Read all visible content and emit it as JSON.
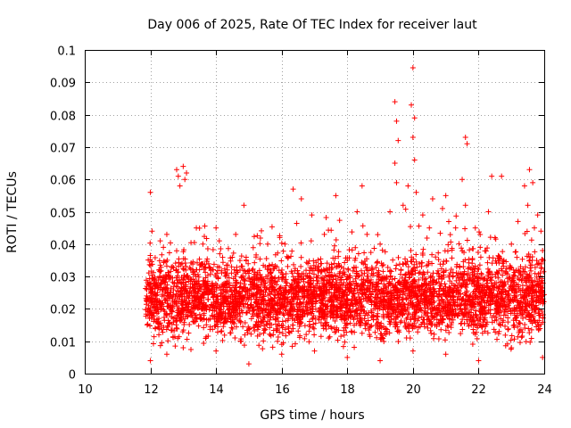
{
  "chart_data": {
    "type": "scatter",
    "title": "Day 006 of 2025, Rate Of TEC Index for receiver laut",
    "xlabel": "GPS time / hours",
    "ylabel": "ROTI / TECUs",
    "xlim": [
      10,
      24
    ],
    "ylim": [
      0,
      0.1
    ],
    "xticks": [
      "10",
      "12",
      "14",
      "16",
      "18",
      "20",
      "22",
      "24"
    ],
    "yticks": [
      "0",
      "0.01",
      "0.02",
      "0.03",
      "0.04",
      "0.05",
      "0.06",
      "0.07",
      "0.08",
      "0.09",
      "0.1"
    ],
    "grid": true,
    "marker": "+",
    "color": "#ff0000",
    "series": [
      {
        "name": "ROTI",
        "points": [
          [
            11.95,
            0.021
          ],
          [
            12.0,
            0.056
          ],
          [
            12.05,
            0.044
          ],
          [
            12.3,
            0.041
          ],
          [
            12.5,
            0.043
          ],
          [
            12.8,
            0.063
          ],
          [
            12.85,
            0.061
          ],
          [
            12.9,
            0.058
          ],
          [
            13.0,
            0.064
          ],
          [
            13.05,
            0.06
          ],
          [
            13.1,
            0.062
          ],
          [
            13.4,
            0.045
          ],
          [
            13.6,
            0.04
          ],
          [
            14.0,
            0.045
          ],
          [
            14.1,
            0.041
          ],
          [
            14.6,
            0.043
          ],
          [
            14.85,
            0.052
          ],
          [
            15.0,
            0.031
          ],
          [
            15.5,
            0.033
          ],
          [
            16.1,
            0.04
          ],
          [
            16.35,
            0.057
          ],
          [
            16.6,
            0.054
          ],
          [
            16.9,
            0.041
          ],
          [
            17.3,
            0.043
          ],
          [
            17.65,
            0.055
          ],
          [
            18.0,
            0.035
          ],
          [
            18.3,
            0.05
          ],
          [
            18.45,
            0.058
          ],
          [
            18.6,
            0.043
          ],
          [
            19.0,
            0.04
          ],
          [
            19.3,
            0.05
          ],
          [
            19.45,
            0.084
          ],
          [
            19.5,
            0.078
          ],
          [
            19.55,
            0.072
          ],
          [
            19.45,
            0.065
          ],
          [
            19.5,
            0.059
          ],
          [
            19.7,
            0.052
          ],
          [
            19.85,
            0.058
          ],
          [
            19.95,
            0.083
          ],
          [
            20.0,
            0.0945
          ],
          [
            20.05,
            0.079
          ],
          [
            20.0,
            0.073
          ],
          [
            20.05,
            0.066
          ],
          [
            20.1,
            0.056
          ],
          [
            20.3,
            0.049
          ],
          [
            20.5,
            0.045
          ],
          [
            20.6,
            0.054
          ],
          [
            20.9,
            0.051
          ],
          [
            21.0,
            0.055
          ],
          [
            21.3,
            0.045
          ],
          [
            21.5,
            0.06
          ],
          [
            21.6,
            0.073
          ],
          [
            21.65,
            0.071
          ],
          [
            21.6,
            0.052
          ],
          [
            21.9,
            0.045
          ],
          [
            22.3,
            0.05
          ],
          [
            22.4,
            0.061
          ],
          [
            22.7,
            0.061
          ],
          [
            22.5,
            0.042
          ],
          [
            23.0,
            0.04
          ],
          [
            23.2,
            0.047
          ],
          [
            23.4,
            0.058
          ],
          [
            23.5,
            0.052
          ],
          [
            23.55,
            0.063
          ],
          [
            23.65,
            0.059
          ],
          [
            23.7,
            0.045
          ],
          [
            23.8,
            0.049
          ],
          [
            23.9,
            0.044
          ],
          [
            23.95,
            0.038
          ],
          [
            23.95,
            0.005
          ],
          [
            12.0,
            0.004
          ],
          [
            12.5,
            0.006
          ],
          [
            13.0,
            0.008
          ],
          [
            14.0,
            0.007
          ],
          [
            15.0,
            0.003
          ],
          [
            16.0,
            0.006
          ],
          [
            17.0,
            0.007
          ],
          [
            18.0,
            0.005
          ],
          [
            19.0,
            0.004
          ],
          [
            20.0,
            0.007
          ],
          [
            21.0,
            0.006
          ],
          [
            22.0,
            0.004
          ],
          [
            23.0,
            0.008
          ]
        ]
      }
    ],
    "dense_band": {
      "x_range": [
        11.85,
        24.0
      ],
      "y_typical_range": [
        0.006,
        0.033
      ],
      "count": 4200
    }
  }
}
